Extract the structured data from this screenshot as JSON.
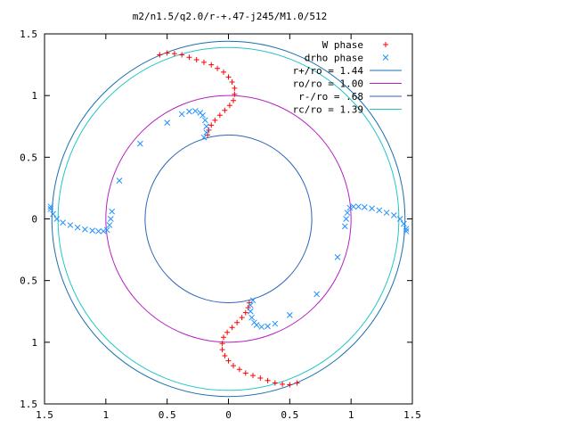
{
  "chart_data": {
    "type": "scatter",
    "title": "m2/n1.5/q2.0/r-+.47-j245/M1.0/512",
    "xlabel": "",
    "ylabel": "",
    "xlim": [
      -1.5,
      1.5
    ],
    "ylim": [
      -1.5,
      1.5
    ],
    "x_tick_values": [
      -1.5,
      -1,
      -0.5,
      0,
      0.5,
      1,
      1.5
    ],
    "x_tick_labels": [
      "1.5",
      "1",
      "0.5",
      "0",
      "0.5",
      "1",
      "1.5"
    ],
    "y_tick_values": [
      1.5,
      1,
      0.5,
      0,
      -0.5,
      -1,
      -1.5
    ],
    "y_tick_labels": [
      "1.5",
      "1",
      "0.5",
      "0",
      "0.5",
      "1",
      "1.5"
    ],
    "grid": false,
    "legend_position": "top-right",
    "circles": [
      {
        "name": "r+/ro = 1.44",
        "radius": 1.44,
        "color": "#1a6fb0"
      },
      {
        "name": "ro/ro = 1.00",
        "radius": 1.0,
        "color": "#b620c2"
      },
      {
        "name": "r-/ro = .68",
        "radius": 0.68,
        "color": "#2a64b8"
      },
      {
        "name": "rc/ro = 1.39",
        "radius": 1.39,
        "color": "#22c6c6"
      }
    ],
    "series": [
      {
        "name": "W phase",
        "marker": "+",
        "color": "#ff0000",
        "points": [
          [
            -0.56,
            1.33
          ],
          [
            -0.5,
            1.345
          ],
          [
            -0.44,
            1.34
          ],
          [
            -0.38,
            1.33
          ],
          [
            -0.32,
            1.31
          ],
          [
            -0.26,
            1.29
          ],
          [
            -0.2,
            1.27
          ],
          [
            -0.14,
            1.25
          ],
          [
            -0.09,
            1.22
          ],
          [
            -0.04,
            1.19
          ],
          [
            0.0,
            1.15
          ],
          [
            0.03,
            1.11
          ],
          [
            0.05,
            1.06
          ],
          [
            0.05,
            1.01
          ],
          [
            0.04,
            0.96
          ],
          [
            0.01,
            0.92
          ],
          [
            -0.03,
            0.88
          ],
          [
            -0.07,
            0.84
          ],
          [
            -0.11,
            0.8
          ],
          [
            -0.14,
            0.76
          ],
          [
            -0.16,
            0.72
          ],
          [
            -0.17,
            0.68
          ],
          [
            0.56,
            -1.33
          ],
          [
            0.5,
            -1.345
          ],
          [
            0.44,
            -1.34
          ],
          [
            0.38,
            -1.33
          ],
          [
            0.32,
            -1.31
          ],
          [
            0.26,
            -1.29
          ],
          [
            0.2,
            -1.27
          ],
          [
            0.14,
            -1.25
          ],
          [
            0.09,
            -1.22
          ],
          [
            0.04,
            -1.19
          ],
          [
            0.0,
            -1.15
          ],
          [
            -0.03,
            -1.11
          ],
          [
            -0.05,
            -1.06
          ],
          [
            -0.05,
            -1.01
          ],
          [
            -0.04,
            -0.96
          ],
          [
            -0.01,
            -0.92
          ],
          [
            0.03,
            -0.88
          ],
          [
            0.07,
            -0.84
          ],
          [
            0.11,
            -0.8
          ],
          [
            0.14,
            -0.76
          ],
          [
            0.16,
            -0.72
          ],
          [
            0.17,
            -0.68
          ]
        ]
      },
      {
        "name": "drho phase",
        "marker": "x",
        "color": "#1e90ff",
        "points": [
          [
            -0.2,
            0.66
          ],
          [
            -0.18,
            0.7
          ],
          [
            -0.18,
            0.75
          ],
          [
            -0.19,
            0.8
          ],
          [
            -0.21,
            0.84
          ],
          [
            -0.23,
            0.86
          ],
          [
            -0.27,
            0.875
          ],
          [
            -0.32,
            0.87
          ],
          [
            -0.38,
            0.85
          ],
          [
            -0.5,
            0.78
          ],
          [
            -0.72,
            0.61
          ],
          [
            -0.89,
            0.31
          ],
          [
            -0.95,
            0.06
          ],
          [
            -0.96,
            0.0
          ],
          [
            -0.97,
            -0.05
          ],
          [
            -0.99,
            -0.09
          ],
          [
            -1.02,
            -0.1
          ],
          [
            -1.06,
            -0.1
          ],
          [
            -1.11,
            -0.095
          ],
          [
            -1.17,
            -0.085
          ],
          [
            -1.23,
            -0.07
          ],
          [
            -1.29,
            -0.05
          ],
          [
            -1.35,
            -0.03
          ],
          [
            -1.4,
            0.0
          ],
          [
            -1.43,
            0.04
          ],
          [
            -1.45,
            0.08
          ],
          [
            -1.45,
            0.1
          ],
          [
            0.2,
            -0.66
          ],
          [
            0.18,
            -0.7
          ],
          [
            0.18,
            -0.75
          ],
          [
            0.19,
            -0.8
          ],
          [
            0.21,
            -0.84
          ],
          [
            0.23,
            -0.86
          ],
          [
            0.27,
            -0.875
          ],
          [
            0.32,
            -0.87
          ],
          [
            0.38,
            -0.85
          ],
          [
            0.5,
            -0.78
          ],
          [
            0.72,
            -0.61
          ],
          [
            0.89,
            -0.31
          ],
          [
            0.95,
            -0.06
          ],
          [
            0.96,
            0.0
          ],
          [
            0.97,
            0.05
          ],
          [
            0.99,
            0.09
          ],
          [
            1.02,
            0.1
          ],
          [
            1.06,
            0.1
          ],
          [
            1.11,
            0.095
          ],
          [
            1.17,
            0.085
          ],
          [
            1.23,
            0.07
          ],
          [
            1.29,
            0.05
          ],
          [
            1.35,
            0.03
          ],
          [
            1.4,
            0.0
          ],
          [
            1.43,
            -0.04
          ],
          [
            1.45,
            -0.08
          ],
          [
            1.45,
            -0.1
          ]
        ]
      }
    ]
  }
}
